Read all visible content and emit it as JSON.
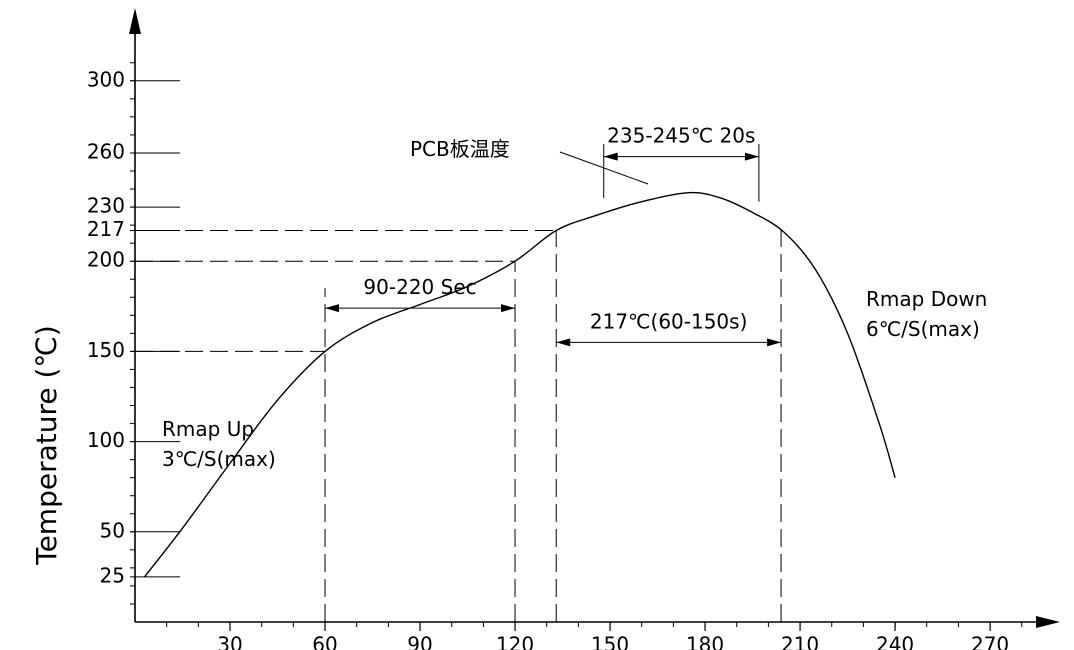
{
  "chart_data": {
    "type": "line",
    "title": "",
    "xlabel": "",
    "ylabel": "Temperature (℃)",
    "xlim": [
      0,
      285
    ],
    "ylim": [
      0,
      320
    ],
    "x_ticks": [
      {
        "value": 30,
        "label": "30"
      },
      {
        "value": 60,
        "label": "60"
      },
      {
        "value": 90,
        "label": "90"
      },
      {
        "value": 120,
        "label": "120"
      },
      {
        "value": 150,
        "label": "150"
      },
      {
        "value": 180,
        "label": "180"
      },
      {
        "value": 210,
        "label": "210"
      },
      {
        "value": 240,
        "label": "240"
      },
      {
        "value": 270,
        "label": "270"
      }
    ],
    "y_ticks": [
      {
        "value": 25,
        "label": "25"
      },
      {
        "value": 50,
        "label": "50"
      },
      {
        "value": 100,
        "label": "100"
      },
      {
        "value": 150,
        "label": "150"
      },
      {
        "value": 200,
        "label": "200"
      },
      {
        "value": 217,
        "label": "217"
      },
      {
        "value": 230,
        "label": "230"
      },
      {
        "value": 260,
        "label": "260"
      },
      {
        "value": 300,
        "label": "300"
      }
    ],
    "series": [
      {
        "name": "PCB板温度",
        "x": [
          3,
          15,
          30,
          45,
          60,
          75,
          90,
          105,
          120,
          133,
          145,
          160,
          175,
          185,
          195,
          205,
          215,
          225,
          235,
          240
        ],
        "y": [
          25,
          52,
          88,
          123,
          150,
          166,
          176,
          186,
          200,
          217,
          225,
          233,
          238,
          235,
          227,
          216,
          195,
          160,
          110,
          80
        ]
      }
    ],
    "reference_lines": {
      "horizontal": [
        {
          "y": 150,
          "x_end": 60
        },
        {
          "y": 200,
          "x_end": 120
        },
        {
          "y": 217,
          "x_end": 133
        }
      ],
      "vertical": [
        {
          "x": 60,
          "y_start": 0,
          "y_end": 185
        },
        {
          "x": 120,
          "y_start": 0,
          "y_end": 200
        },
        {
          "x": 133,
          "y_start": 0,
          "y_end": 217
        },
        {
          "x": 204,
          "y_start": 0,
          "y_end": 217
        },
        {
          "x": 148,
          "y_start": 235,
          "y_end": 265
        },
        {
          "x": 197,
          "y_start": 233,
          "y_end": 265
        }
      ]
    },
    "dimension_arrows": [
      {
        "name": "soak",
        "x1": 60,
        "x2": 120,
        "y": 174,
        "label": "90-220 Sec"
      },
      {
        "name": "liquidus",
        "x1": 133,
        "x2": 204,
        "y": 155,
        "label": "217℃(60-150s)"
      },
      {
        "name": "peak",
        "x1": 148,
        "x2": 197,
        "y": 258,
        "label": "235-245℃ 20s"
      }
    ],
    "annotations": {
      "pcb_label": "PCB板温度",
      "ramp_up_line1": "Rmap Up",
      "ramp_up_line2": "3℃/S(max)",
      "ramp_down_line1": "Rmap Down",
      "ramp_down_line2": "6℃/S(max)"
    }
  }
}
